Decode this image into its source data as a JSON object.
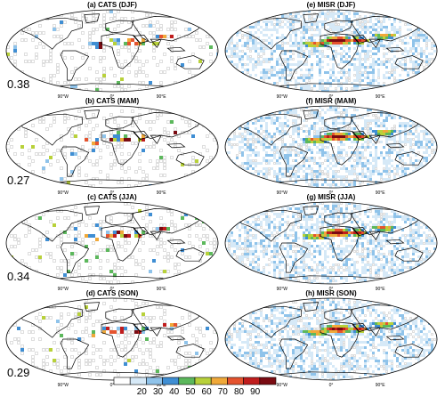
{
  "panels": [
    {
      "id": "a",
      "title": "(a) CATS (DJF)",
      "value": "0.38",
      "instrument": "CATS",
      "season": "DJF"
    },
    {
      "id": "e",
      "title": "(e) MISR (DJF)",
      "value": "",
      "instrument": "MISR",
      "season": "DJF"
    },
    {
      "id": "b",
      "title": "(b) CATS (MAM)",
      "value": "0.27",
      "instrument": "CATS",
      "season": "MAM"
    },
    {
      "id": "f",
      "title": "(f) MISR (MAM)",
      "value": "",
      "instrument": "MISR",
      "season": "MAM"
    },
    {
      "id": "c",
      "title": "(c) CATS (JJA)",
      "value": "0.34",
      "instrument": "CATS",
      "season": "JJA"
    },
    {
      "id": "g",
      "title": "(g) MISR (JJA)",
      "value": "",
      "instrument": "MISR",
      "season": "JJA"
    },
    {
      "id": "d",
      "title": "(d) CATS (SON)",
      "value": "0.29",
      "instrument": "CATS",
      "season": "SON"
    },
    {
      "id": "h",
      "title": "(h) MISR (SON)",
      "value": "",
      "instrument": "MISR",
      "season": "SON"
    }
  ],
  "lon_labels": [
    "90°W",
    "0°",
    "90°E"
  ],
  "colorbar": {
    "labels": [
      "20",
      "30",
      "40",
      "50",
      "60",
      "70",
      "80",
      "90"
    ],
    "colors": [
      "#ffffff",
      "#d6e9f7",
      "#8fc3ea",
      "#3f8ed3",
      "#5cb85c",
      "#b8d13a",
      "#f0a93a",
      "#e5532e",
      "#c01d1d",
      "#7a0b12"
    ]
  },
  "map_colors": {
    "land_outline": "#000000",
    "grid_missing": "#bdbdbd"
  }
}
